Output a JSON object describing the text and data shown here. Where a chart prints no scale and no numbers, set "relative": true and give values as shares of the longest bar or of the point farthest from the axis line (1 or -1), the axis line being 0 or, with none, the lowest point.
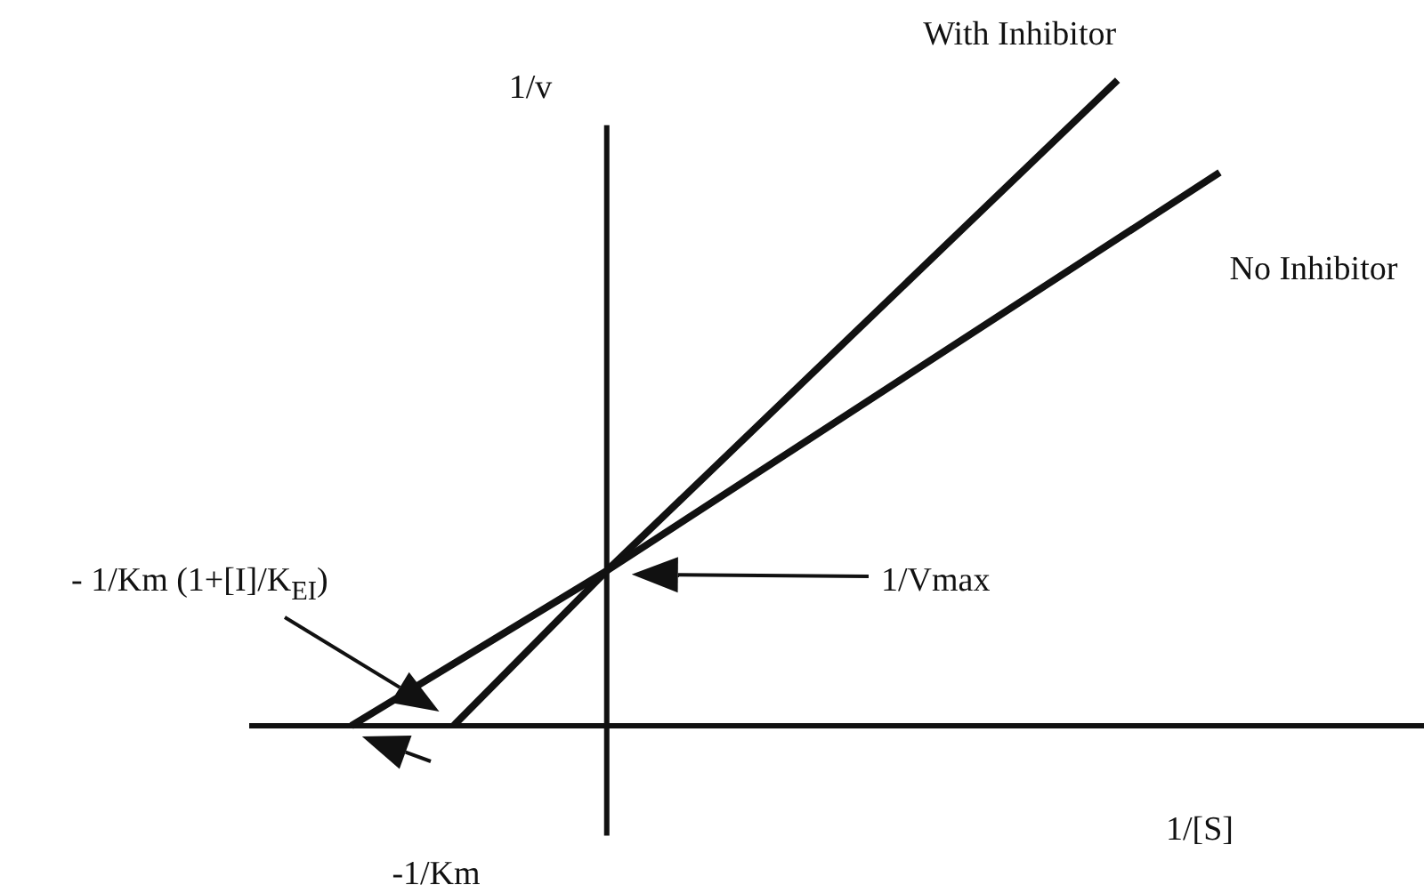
{
  "chart_data": {
    "type": "line",
    "relative": true,
    "xlabel": "1/[S]",
    "ylabel": "1/v",
    "tick_labels": false,
    "marker": "none",
    "line_style": "solid",
    "categories": [
      null,
      null,
      null,
      null,
      null,
      null,
      null,
      null,
      null,
      null,
      null,
      null,
      null,
      null,
      null,
      null,
      null,
      null,
      null,
      null,
      null,
      null,
      null,
      null
    ],
    "series": [
      {
        "name": "With Inhibitor",
        "color": "#111111",
        "values": [
          null,
          null,
          null,
          null,
          0,
          null,
          null,
          0.24,
          null,
          null,
          null,
          null,
          null,
          null,
          null,
          null,
          null,
          1,
          null,
          null,
          null,
          null,
          null,
          null
        ]
      },
      {
        "name": "No Inhibitor",
        "color": "#111111",
        "values": [
          null,
          null,
          0,
          null,
          null,
          null,
          null,
          0.24,
          null,
          null,
          null,
          null,
          null,
          null,
          null,
          null,
          null,
          null,
          null,
          0.857,
          null,
          null,
          null,
          null
        ]
      }
    ],
    "annotations": [
      "- 1/Km (1+[I]/K$_{EI}$)",
      "1/Vmax",
      "-1/Km"
    ]
  }
}
